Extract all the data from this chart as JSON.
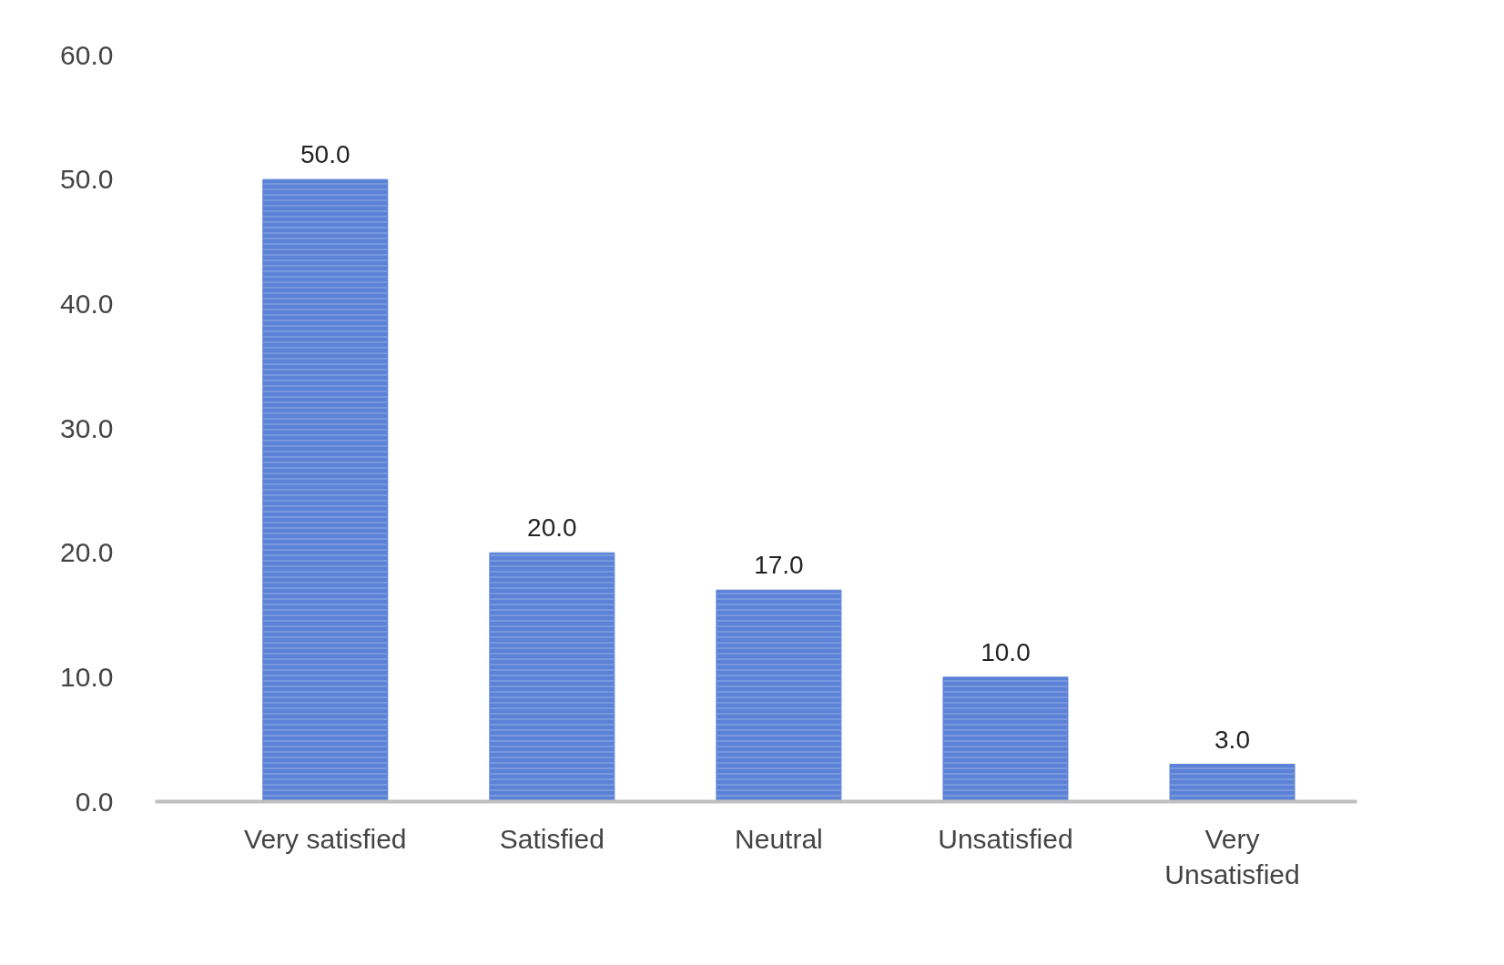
{
  "chart_data": {
    "type": "bar",
    "categories": [
      "Very satisfied",
      "Satisfied",
      "Neutral",
      "Unsatisfied",
      "Very Unsatisfied"
    ],
    "values": [
      50,
      20,
      17,
      10,
      3
    ],
    "value_labels": [
      "50.0",
      "20.0",
      "17.0",
      "10.0",
      "3.0"
    ],
    "color": "#5b82d6",
    "ylim": [
      0,
      60
    ],
    "yticks": [
      {
        "value": 0,
        "label": "0.0"
      },
      {
        "value": 10,
        "label": "10.0"
      },
      {
        "value": 20,
        "label": "20.0"
      },
      {
        "value": 30,
        "label": "30.0"
      },
      {
        "value": 40,
        "label": "40.0"
      },
      {
        "value": 50,
        "label": "50.0"
      },
      {
        "value": 60,
        "label": "60.0"
      }
    ],
    "grid": false
  }
}
